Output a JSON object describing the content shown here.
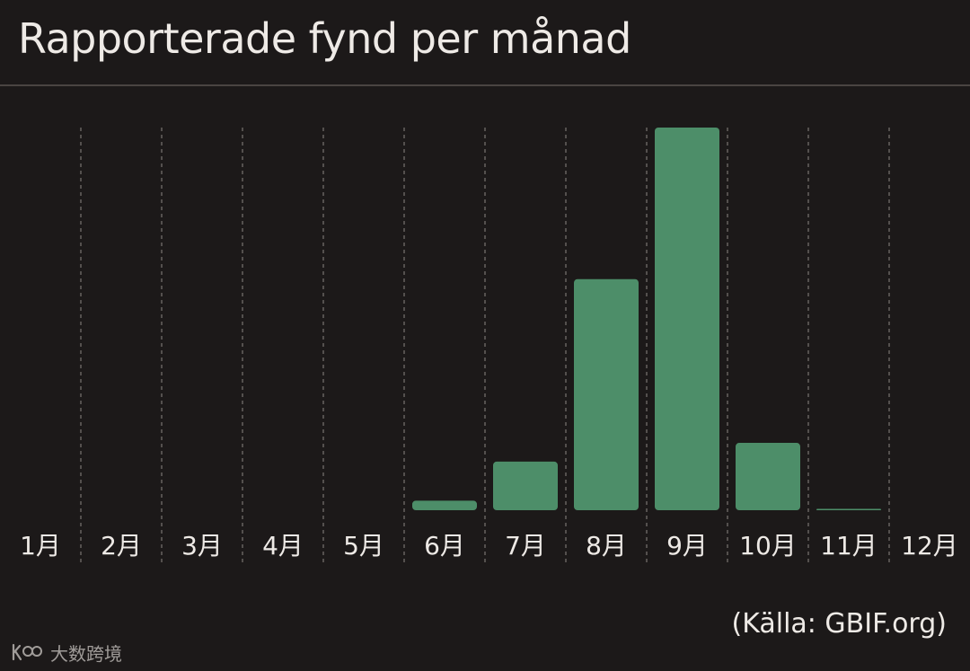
{
  "header": {
    "title": "Rapporterade fynd per månad"
  },
  "footer": {
    "source": "(Källa: GBIF.org)",
    "watermark": "大数跨境",
    "watermark_icon": "logo-icon"
  },
  "colors": {
    "background": "#1c1919",
    "bar": "#4d8e69",
    "text": "#eeeae6",
    "gridline": "#7a7472"
  },
  "chart_data": {
    "type": "bar",
    "title": "Rapporterade fynd per månad",
    "xlabel": "",
    "ylabel": "",
    "categories": [
      "1月",
      "2月",
      "3月",
      "4月",
      "5月",
      "6月",
      "7月",
      "8月",
      "9月",
      "10月",
      "11月",
      "12月"
    ],
    "values": [
      0,
      0,
      0,
      0,
      0,
      2.5,
      12.7,
      60.4,
      100,
      17.6,
      0.2,
      0
    ],
    "value_unit": "relative height (9月 = 100)",
    "ylim": [
      0,
      100
    ],
    "y_axis_shown": false,
    "grid": "vertical dashed separators between months",
    "legend": "none"
  }
}
